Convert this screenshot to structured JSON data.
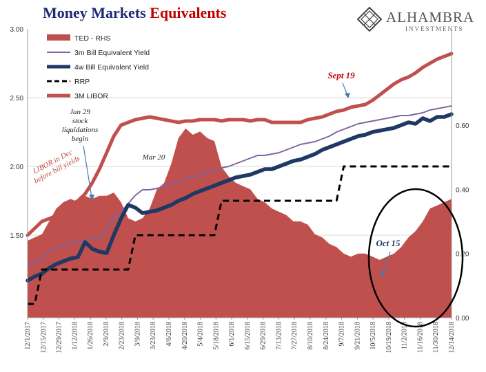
{
  "title_part1": "Money Markets",
  "title_part2": "Equivalents",
  "logo": {
    "name": "ALHAMBRA",
    "sub": "INVESTMENTS",
    "icon": "alhambra-diamond-icon"
  },
  "chart_data": {
    "type": "line",
    "left_axis": {
      "ylim": [
        0.9,
        3.0
      ],
      "ticks": [
        "3.00",
        "2.50",
        "2.00",
        "1.50"
      ],
      "tick_values": [
        3.0,
        2.5,
        2.0,
        1.5
      ]
    },
    "right_axis": {
      "ylim": [
        0.0,
        0.9
      ],
      "ticks": [
        "0.60",
        "0.40",
        "0.20",
        "0.00"
      ],
      "tick_values": [
        0.6,
        0.4,
        0.2,
        0.0
      ]
    },
    "grid": true,
    "legend_position": "top-left",
    "x_ticks": [
      "12/1/2017",
      "12/15/2017",
      "12/29/2017",
      "1/12/2018",
      "1/26/2018",
      "2/9/2018",
      "2/23/2018",
      "3/9/2018",
      "3/23/2018",
      "4/6/2018",
      "4/20/2018",
      "5/4/2018",
      "5/18/2018",
      "6/1/2018",
      "6/15/2018",
      "6/29/2018",
      "7/13/2018",
      "7/27/2018",
      "8/10/2018",
      "8/24/2018",
      "9/7/2018",
      "9/21/2018",
      "10/5/2018",
      "10/19/2018",
      "11/2/2018",
      "11/16/2018",
      "11/30/2018",
      "12/14/2018"
    ],
    "series": [
      {
        "name": "TED - RHS",
        "type": "area",
        "axis": "right",
        "color": "#c0504d",
        "values": [
          0.24,
          0.25,
          0.26,
          0.3,
          0.34,
          0.36,
          0.37,
          0.36,
          0.38,
          0.37,
          0.38,
          0.38,
          0.39,
          0.36,
          0.31,
          0.3,
          0.31,
          0.34,
          0.4,
          0.42,
          0.48,
          0.56,
          0.59,
          0.57,
          0.58,
          0.56,
          0.55,
          0.47,
          0.44,
          0.42,
          0.41,
          0.4,
          0.37,
          0.36,
          0.34,
          0.33,
          0.32,
          0.3,
          0.3,
          0.29,
          0.26,
          0.25,
          0.23,
          0.22,
          0.2,
          0.19,
          0.2,
          0.2,
          0.19,
          0.18,
          0.19,
          0.2,
          0.22,
          0.25,
          0.27,
          0.3,
          0.34,
          0.35,
          0.36,
          0.37
        ]
      },
      {
        "name": "3m Bill Equivalent Yield",
        "type": "line",
        "axis": "left",
        "color": "#8064a2",
        "values": [
          1.28,
          1.31,
          1.33,
          1.38,
          1.41,
          1.43,
          1.44,
          1.45,
          1.46,
          1.47,
          1.48,
          1.54,
          1.62,
          1.67,
          1.73,
          1.79,
          1.83,
          1.83,
          1.84,
          1.85,
          1.88,
          1.89,
          1.91,
          1.93,
          1.93,
          1.96,
          1.97,
          1.99,
          2.0,
          2.02,
          2.04,
          2.06,
          2.08,
          2.08,
          2.09,
          2.1,
          2.12,
          2.14,
          2.16,
          2.17,
          2.18,
          2.2,
          2.22,
          2.25,
          2.27,
          2.29,
          2.31,
          2.32,
          2.33,
          2.34,
          2.35,
          2.36,
          2.37,
          2.37,
          2.38,
          2.39,
          2.41,
          2.42,
          2.43,
          2.44
        ]
      },
      {
        "name": "4w Bill Equivalent Yield",
        "type": "line",
        "axis": "left",
        "color": "#1f3864",
        "values": [
          1.17,
          1.2,
          1.22,
          1.26,
          1.29,
          1.31,
          1.33,
          1.34,
          1.45,
          1.4,
          1.38,
          1.37,
          1.5,
          1.62,
          1.72,
          1.7,
          1.66,
          1.67,
          1.68,
          1.7,
          1.72,
          1.75,
          1.77,
          1.8,
          1.82,
          1.84,
          1.86,
          1.88,
          1.9,
          1.92,
          1.93,
          1.94,
          1.96,
          1.98,
          1.98,
          2.0,
          2.02,
          2.04,
          2.05,
          2.07,
          2.09,
          2.12,
          2.14,
          2.16,
          2.18,
          2.2,
          2.22,
          2.23,
          2.25,
          2.26,
          2.27,
          2.28,
          2.3,
          2.32,
          2.31,
          2.35,
          2.33,
          2.36,
          2.36,
          2.38
        ]
      },
      {
        "name": "RRP",
        "type": "line",
        "axis": "left",
        "style": "dashed",
        "color": "#000000",
        "values": [
          1.0,
          1.0,
          1.25,
          1.25,
          1.25,
          1.25,
          1.25,
          1.25,
          1.25,
          1.25,
          1.25,
          1.25,
          1.25,
          1.25,
          1.25,
          1.5,
          1.5,
          1.5,
          1.5,
          1.5,
          1.5,
          1.5,
          1.5,
          1.5,
          1.5,
          1.5,
          1.5,
          1.75,
          1.75,
          1.75,
          1.75,
          1.75,
          1.75,
          1.75,
          1.75,
          1.75,
          1.75,
          1.75,
          1.75,
          1.75,
          1.75,
          1.75,
          1.75,
          1.75,
          2.0,
          2.0,
          2.0,
          2.0,
          2.0,
          2.0,
          2.0,
          2.0,
          2.0,
          2.0,
          2.0,
          2.0,
          2.0,
          2.0,
          2.0,
          2.0
        ]
      },
      {
        "name": "3M LIBOR",
        "type": "line",
        "axis": "left",
        "color": "#c0504d",
        "values": [
          1.5,
          1.55,
          1.6,
          1.62,
          1.64,
          1.68,
          1.72,
          1.75,
          1.8,
          1.88,
          1.98,
          2.1,
          2.22,
          2.3,
          2.32,
          2.34,
          2.35,
          2.36,
          2.35,
          2.34,
          2.33,
          2.32,
          2.33,
          2.33,
          2.34,
          2.34,
          2.34,
          2.33,
          2.34,
          2.34,
          2.34,
          2.33,
          2.34,
          2.34,
          2.32,
          2.32,
          2.32,
          2.32,
          2.32,
          2.34,
          2.35,
          2.36,
          2.38,
          2.4,
          2.41,
          2.43,
          2.44,
          2.45,
          2.48,
          2.52,
          2.56,
          2.6,
          2.63,
          2.65,
          2.68,
          2.72,
          2.75,
          2.78,
          2.8,
          2.82
        ]
      }
    ],
    "annotations": [
      {
        "text": "Sept 19",
        "color": "#c00000",
        "italic": true,
        "bold": true
      },
      {
        "text": "Jan 29 stock liquidations begin",
        "lines": [
          "Jan 29",
          "stock",
          "liquidations",
          "begin"
        ]
      },
      {
        "text": "Mar 20"
      },
      {
        "text": "Oct 15",
        "color": "#1f3864",
        "italic": true,
        "bold": true
      },
      {
        "text": "LIBOR in Dec before bill yields",
        "lines": [
          "LIBOR in Dec",
          "before bill yields"
        ],
        "color": "#c0504d",
        "italic": true,
        "rotated": true
      }
    ]
  }
}
